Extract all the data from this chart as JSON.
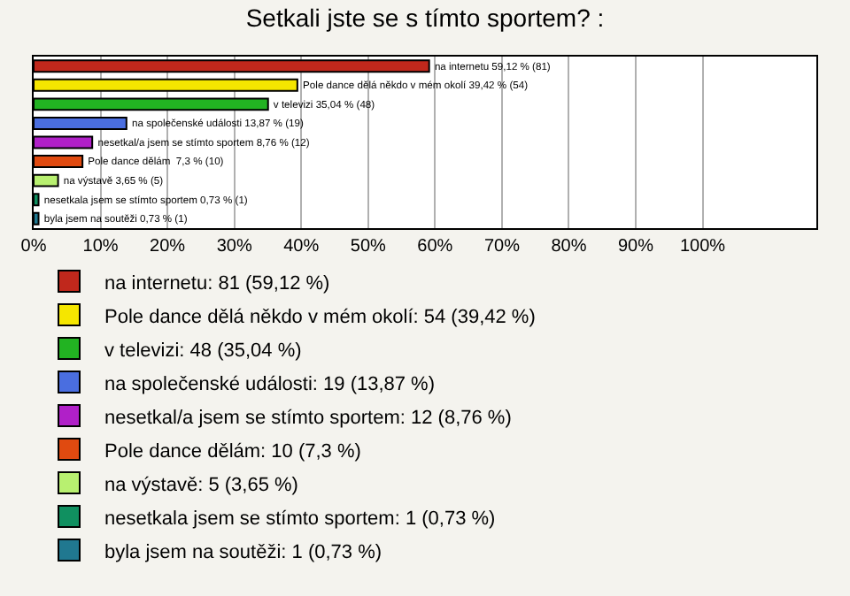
{
  "chart_data": {
    "type": "bar",
    "orientation": "horizontal",
    "title": "Setkali jste se s tímto sportem? :",
    "categories": [
      null,
      null,
      null,
      null,
      null,
      null,
      null,
      null,
      null
    ],
    "series": [
      {
        "name": "na internetu: 81 (59,12 %)",
        "color": "#c0281c",
        "values": [
          59.12,
          null,
          null,
          null,
          null,
          null,
          null,
          null,
          null
        ],
        "value_labels": [
          "na internetu 59,12 % (81)",
          null,
          null,
          null,
          null,
          null,
          null,
          null,
          null
        ]
      },
      {
        "name": "Pole dance dělá někdo v mém okolí: 54 (39,42 %)",
        "color": "#f5e600",
        "values": [
          null,
          39.42,
          null,
          null,
          null,
          null,
          null,
          null,
          null
        ],
        "value_labels": [
          null,
          "Pole dance dělá někdo v mém okolí 39,42 % (54)",
          null,
          null,
          null,
          null,
          null,
          null,
          null
        ]
      },
      {
        "name": "v televizi: 48 (35,04 %)",
        "color": "#22b322",
        "values": [
          null,
          null,
          35.04,
          null,
          null,
          null,
          null,
          null,
          null
        ],
        "value_labels": [
          null,
          null,
          "v televizi 35,04 % (48)",
          null,
          null,
          null,
          null,
          null,
          null
        ]
      },
      {
        "name": "na společenské události: 19 (13,87 %)",
        "color": "#4a6ee0",
        "values": [
          null,
          null,
          null,
          13.87,
          null,
          null,
          null,
          null,
          null
        ],
        "value_labels": [
          null,
          null,
          null,
          "na společenské události 13,87 % (19)",
          null,
          null,
          null,
          null,
          null
        ]
      },
      {
        "name": "nesetkal/a jsem se stímto sportem: 12 (8,76 %)",
        "color": "#b020c8",
        "values": [
          null,
          null,
          null,
          null,
          8.76,
          null,
          null,
          null,
          null
        ],
        "value_labels": [
          null,
          null,
          null,
          null,
          "nesetkal/a jsem se stímto sportem 8,76 % (12)",
          null,
          null,
          null,
          null
        ]
      },
      {
        "name": "Pole dance dělám: 10 (7,3 %)",
        "color": "#e04a10",
        "values": [
          null,
          null,
          null,
          null,
          null,
          7.3,
          null,
          null,
          null
        ],
        "value_labels": [
          null,
          null,
          null,
          null,
          null,
          "Pole dance dělám  7,3 % (10)",
          null,
          null,
          null
        ]
      },
      {
        "name": "na výstavě: 5 (3,65 %)",
        "color": "#b8f070",
        "values": [
          null,
          null,
          null,
          null,
          null,
          null,
          3.65,
          null,
          null
        ],
        "value_labels": [
          null,
          null,
          null,
          null,
          null,
          null,
          "na výstavě 3,65 % (5)",
          null,
          null
        ]
      },
      {
        "name": "nesetkala jsem se stímto sportem: 1 (0,73 %)",
        "color": "#109060",
        "values": [
          null,
          null,
          null,
          null,
          null,
          null,
          null,
          0.73,
          null
        ],
        "value_labels": [
          null,
          null,
          null,
          null,
          null,
          null,
          null,
          "nesetkala jsem se stímto sportem 0,73 % (1)",
          null
        ]
      },
      {
        "name": "byla jsem na soutěži: 1 (0,73 %)",
        "color": "#207890",
        "values": [
          null,
          null,
          null,
          null,
          null,
          null,
          null,
          null,
          0.73
        ],
        "value_labels": [
          null,
          null,
          null,
          null,
          null,
          null,
          null,
          null,
          "byla jsem na soutěži 0,73 % (1)"
        ]
      }
    ],
    "xlim": [
      0,
      117
    ],
    "xticks": [
      {
        "value": 0,
        "label": "0%"
      },
      {
        "value": 10,
        "label": "10%"
      },
      {
        "value": 20,
        "label": "20%"
      },
      {
        "value": 30,
        "label": "30%"
      },
      {
        "value": 40,
        "label": "40%"
      },
      {
        "value": 50,
        "label": "50%"
      },
      {
        "value": 60,
        "label": "60%"
      },
      {
        "value": 70,
        "label": "70%"
      },
      {
        "value": 80,
        "label": "80%"
      },
      {
        "value": 90,
        "label": "90%"
      },
      {
        "value": 100,
        "label": "100%"
      }
    ],
    "grid": "x",
    "legend": "bottom",
    "tick_labels": "x"
  }
}
